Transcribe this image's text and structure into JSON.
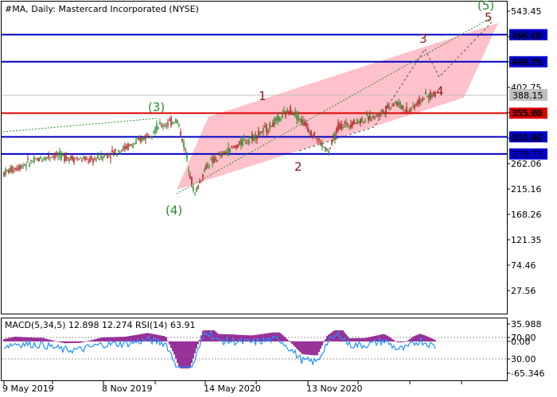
{
  "chart_data": {
    "type": "candlestick",
    "title": "#MA, Daily:  Mastercard Incorporated (NYSE)",
    "price_axis": {
      "ticks": [
        "543.45",
        "496.60",
        "449.75",
        "402.75",
        "355.90",
        "309.06",
        "262.06",
        "215.16",
        "168.26",
        "121.35",
        "74.46",
        "27.56"
      ],
      "ylim": [
        -5,
        560
      ]
    },
    "date_axis": {
      "ticks": [
        "9 May 2019",
        "8 Nov 2019",
        "14 May 2020",
        "13 Nov 2020"
      ]
    },
    "current_price": "388.15",
    "levels": [
      {
        "value": 500.0,
        "label": "500.00",
        "color": "#0000cc"
      },
      {
        "value": 450.0,
        "label": "450.00",
        "color": "#0000cc"
      },
      {
        "value": 355.08,
        "label": "355.08",
        "color": "#dd0000"
      },
      {
        "value": 311.42,
        "label": "311.42",
        "color": "#0000cc"
      },
      {
        "value": 279.75,
        "label": "279.75",
        "color": "#0000cc"
      }
    ],
    "wave_labels": [
      {
        "text": "(3)",
        "color": "#2e8b2e"
      },
      {
        "text": "(4)",
        "color": "#2e8b2e"
      },
      {
        "text": "1",
        "color": "#8b1a1a"
      },
      {
        "text": "2",
        "color": "#8b1a1a"
      },
      {
        "text": "3",
        "color": "#8b1a1a"
      },
      {
        "text": "4",
        "color": "#8b1a1a"
      },
      {
        "text": "5",
        "color": "#8b1a1a"
      },
      {
        "text": "(5)",
        "color": "#2e8b2e"
      }
    ],
    "price_series": [
      {
        "date": "2019-05-09",
        "value": 245
      },
      {
        "date": "2019-06-15",
        "value": 262
      },
      {
        "date": "2019-07-30",
        "value": 278
      },
      {
        "date": "2019-09-01",
        "value": 272
      },
      {
        "date": "2019-10-01",
        "value": 268
      },
      {
        "date": "2019-11-08",
        "value": 283
      },
      {
        "date": "2019-12-15",
        "value": 300
      },
      {
        "date": "2020-01-20",
        "value": 330
      },
      {
        "date": "2020-02-20",
        "value": 343
      },
      {
        "date": "2020-03-05",
        "value": 285
      },
      {
        "date": "2020-03-20",
        "value": 205
      },
      {
        "date": "2020-04-10",
        "value": 260
      },
      {
        "date": "2020-05-14",
        "value": 285
      },
      {
        "date": "2020-06-10",
        "value": 303
      },
      {
        "date": "2020-07-10",
        "value": 320
      },
      {
        "date": "2020-08-27",
        "value": 362
      },
      {
        "date": "2020-09-15",
        "value": 340
      },
      {
        "date": "2020-10-28",
        "value": 282
      },
      {
        "date": "2020-11-13",
        "value": 330
      },
      {
        "date": "2020-12-15",
        "value": 340
      },
      {
        "date": "2021-01-15",
        "value": 350
      },
      {
        "date": "2021-02-15",
        "value": 375
      },
      {
        "date": "2021-03-10",
        "value": 360
      },
      {
        "date": "2021-04-05",
        "value": 385
      },
      {
        "date": "2021-04-25",
        "value": 390
      }
    ],
    "indicator_panel": {
      "label": "MACD(5,34,5) 12.898 12.274 RSI(14) 63.91",
      "ticks": [
        "35.988",
        "70.00",
        "0.00",
        "30.00",
        "-65.346"
      ],
      "histogram_color": "#800080",
      "rsi_color": "#1e90ff"
    }
  }
}
